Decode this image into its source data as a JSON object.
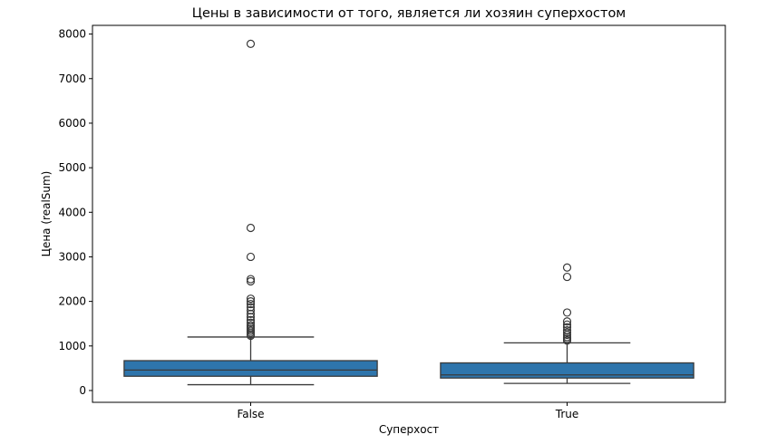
{
  "chart_data": {
    "type": "box",
    "title": "Цены в зависимости от того, является ли хозяин суперхостом",
    "xlabel": "Суперхост",
    "ylabel": "Цена (realSum)",
    "categories": [
      "False",
      "True"
    ],
    "ylim": [
      -265,
      8195
    ],
    "yticks": [
      0,
      1000,
      2000,
      3000,
      4000,
      5000,
      6000,
      7000,
      8000
    ],
    "grid": false,
    "box_color": "#2e75ac",
    "line_color": "#3a3a3a",
    "boxes": [
      {
        "category": "False",
        "whisker_low": 130,
        "q1": 320,
        "median": 460,
        "q3": 670,
        "whisker_high": 1200,
        "outliers": [
          1230,
          1260,
          1300,
          1340,
          1380,
          1420,
          1460,
          1520,
          1580,
          1650,
          1720,
          1800,
          1870,
          1940,
          2000,
          2060,
          2450,
          2500,
          3000,
          3650,
          7780
        ]
      },
      {
        "category": "True",
        "whisker_low": 160,
        "q1": 280,
        "median": 350,
        "q3": 620,
        "whisker_high": 1070,
        "outliers": [
          1120,
          1160,
          1200,
          1250,
          1300,
          1350,
          1420,
          1480,
          1550,
          1750,
          2550,
          2760
        ]
      }
    ]
  }
}
